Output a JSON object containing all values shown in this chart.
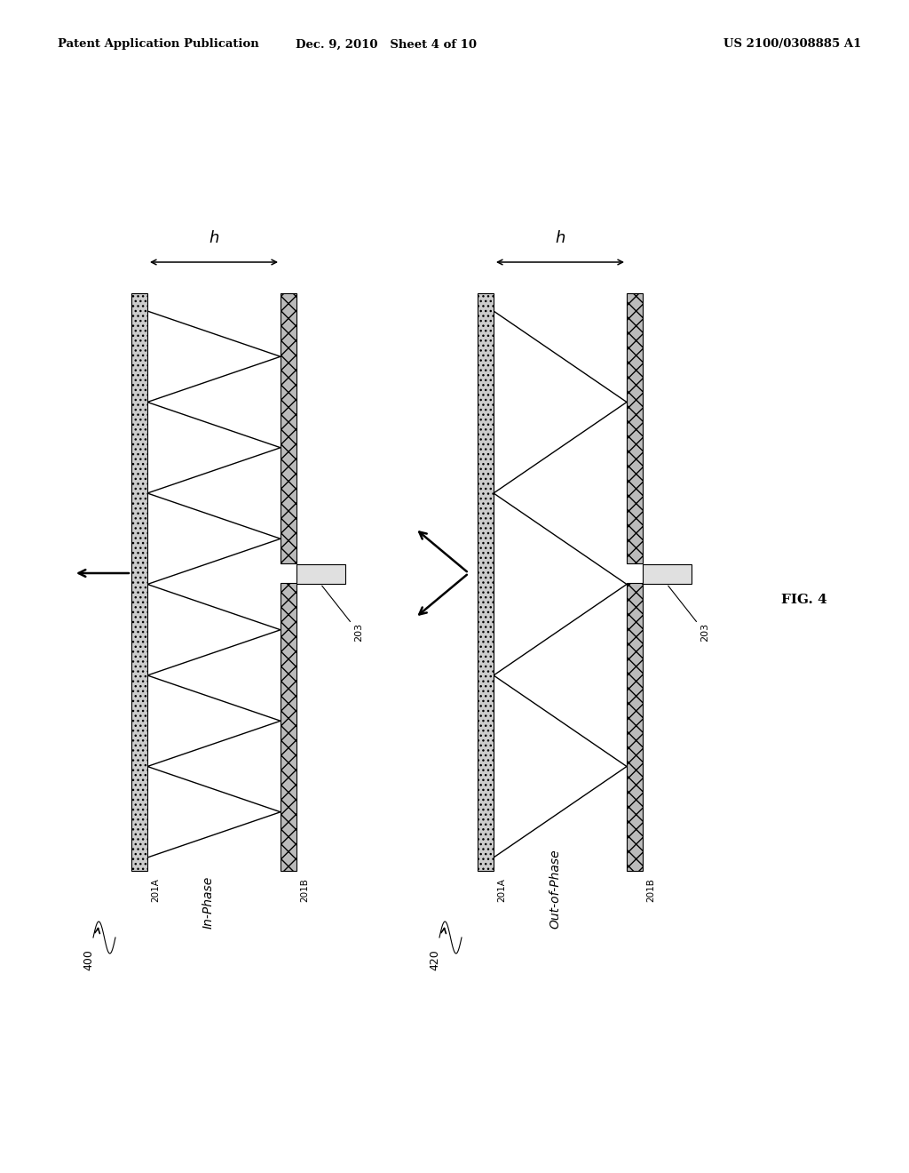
{
  "header_left": "Patent Application Publication",
  "header_mid": "Dec. 9, 2010   Sheet 4 of 10",
  "header_right": "US 2100/0308885 A1",
  "fig_label": "FIG. 4",
  "label_400": "400",
  "label_in_phase": "In-Phase",
  "label_420": "420",
  "label_out_phase": "Out-of-Phase",
  "label_201A": "201A",
  "label_201B": "201B",
  "label_203": "203",
  "h_label": "h",
  "background": "#ffffff"
}
